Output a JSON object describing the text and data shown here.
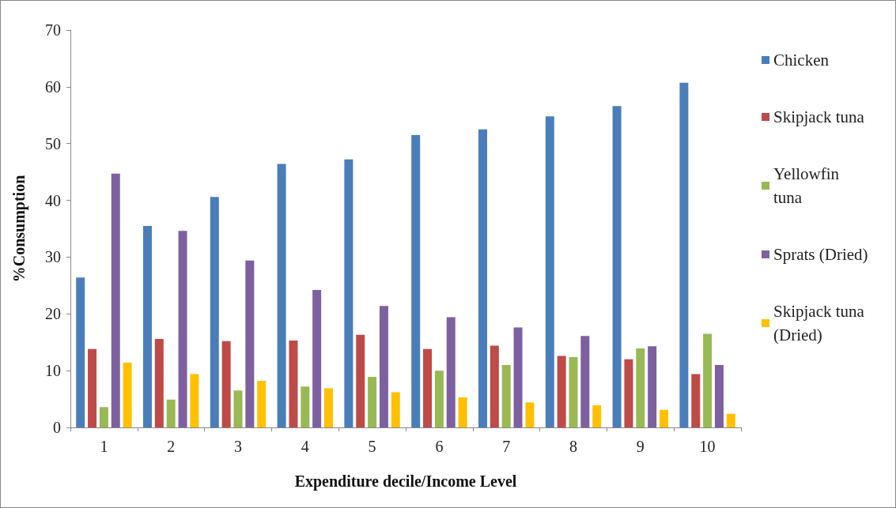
{
  "chart_data": {
    "type": "bar",
    "xlabel": "Expenditure decile/Income Level",
    "ylabel": "%Consumption",
    "categories": [
      "1",
      "2",
      "3",
      "4",
      "5",
      "6",
      "7",
      "8",
      "9",
      "10"
    ],
    "series": [
      {
        "name": "Chicken",
        "color": "#4a7ebb",
        "values": [
          26.4,
          35.5,
          40.6,
          46.4,
          47.2,
          51.5,
          52.5,
          54.8,
          56.6,
          60.7
        ]
      },
      {
        "name": "Skipjack tuna",
        "color": "#be4b48",
        "values": [
          13.8,
          15.6,
          15.2,
          15.3,
          16.3,
          13.8,
          14.4,
          12.6,
          12.0,
          9.4
        ]
      },
      {
        "name": "Yellowfin tuna",
        "color": "#98b954",
        "values": [
          3.6,
          4.9,
          6.5,
          7.2,
          8.9,
          10.0,
          11.0,
          12.4,
          13.9,
          16.5
        ]
      },
      {
        "name": "Sprats (Dried)",
        "color": "#7d60a0",
        "values": [
          44.7,
          34.6,
          29.4,
          24.2,
          21.4,
          19.4,
          17.6,
          16.1,
          14.3,
          11.0
        ]
      },
      {
        "name": "Skipjack tuna (Dried)",
        "color": "#ffc000",
        "values": [
          11.4,
          9.4,
          8.2,
          6.9,
          6.2,
          5.3,
          4.4,
          3.9,
          3.1,
          2.4
        ]
      }
    ],
    "ylim": [
      0,
      70
    ],
    "yticks": [
      0,
      10,
      20,
      30,
      40,
      50,
      60,
      70
    ],
    "grid": false,
    "legend": "right"
  }
}
